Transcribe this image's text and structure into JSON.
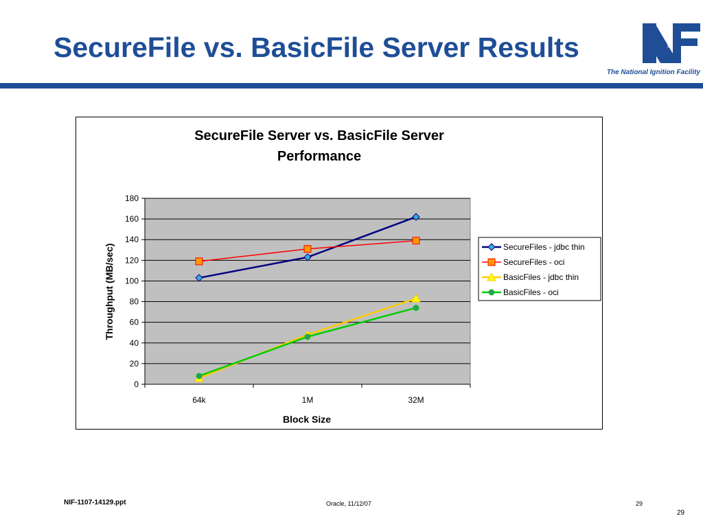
{
  "slide": {
    "title": "SecureFile vs. BasicFile Server Results",
    "logo_tagline": "The National Ignition Facility",
    "logo_mark": "NIF",
    "accent_color": "#1f4e96"
  },
  "footer": {
    "file": "NIF-1107-14129.ppt",
    "center": "Oracle, 11/12/07",
    "slide_number": "29",
    "page_number": "29"
  },
  "chart_data": {
    "type": "line",
    "title_lines": [
      "SecureFile Server vs. BasicFile Server",
      "Performance"
    ],
    "xlabel": "Block Size",
    "ylabel": "Throughput (MB/sec)",
    "categories": [
      "64k",
      "1M",
      "32M"
    ],
    "ylim": [
      0,
      180
    ],
    "yticks": [
      0,
      20,
      40,
      60,
      80,
      100,
      120,
      140,
      160,
      180
    ],
    "grid": true,
    "plot_background": "#c0c0c0",
    "legend_position": "right",
    "series": [
      {
        "name": "SecureFiles - jdbc thin",
        "values": [
          103,
          123,
          162
        ],
        "color": "#000080",
        "marker": "diamond",
        "marker_fill": "#3ba9e0"
      },
      {
        "name": "SecureFiles - oci",
        "values": [
          119,
          131,
          139
        ],
        "color": "#ff0000",
        "marker": "square",
        "marker_fill": "#ff9900"
      },
      {
        "name": "BasicFiles - jdbc thin",
        "values": [
          6,
          48,
          83
        ],
        "color": "#ffcc00",
        "marker": "triangle",
        "marker_fill": "#ffff00"
      },
      {
        "name": "BasicFiles - oci",
        "values": [
          8,
          46,
          74
        ],
        "color": "#00cc00",
        "marker": "circle",
        "marker_fill": "#339966"
      }
    ]
  }
}
